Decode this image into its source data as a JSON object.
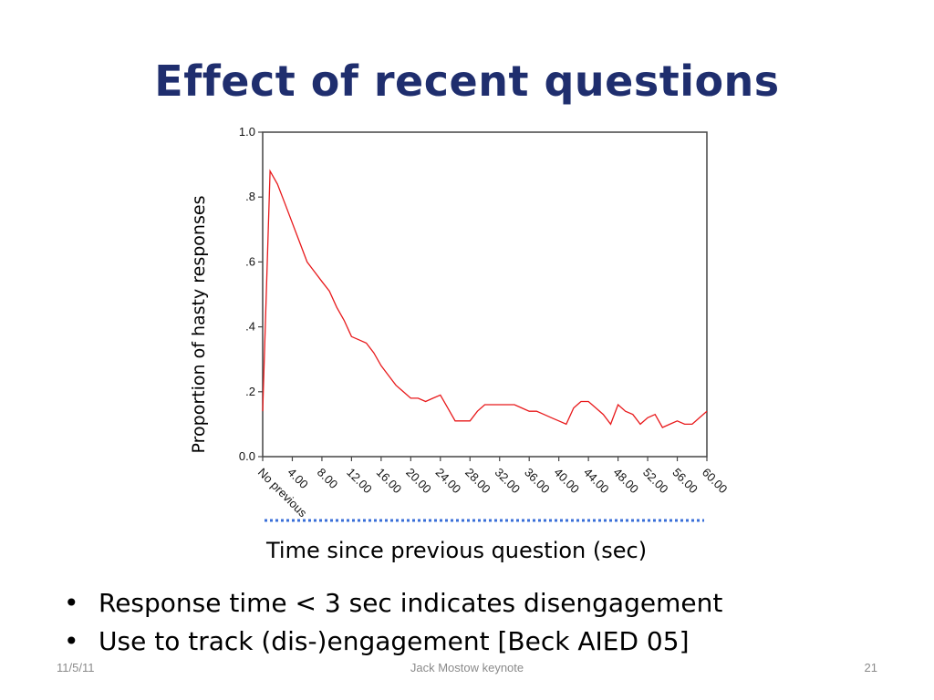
{
  "slide": {
    "title": "Effect of recent questions",
    "bullets": [
      "Response time < 3 sec indicates disengagement",
      "Use to track (dis-)engagement [Beck AIED 05]"
    ],
    "footer": {
      "date": "11/5/11",
      "center": "Jack Mostow keynote",
      "page": "21"
    }
  },
  "chart_data": {
    "type": "line",
    "xlabel": "Time since previous question (sec)",
    "ylabel": "Proportion of hasty responses",
    "ylim": [
      0,
      1
    ],
    "yticks": [
      "0.0",
      ".2",
      ".4",
      ".6",
      ".8",
      "1.0"
    ],
    "xticks": [
      "No previous",
      "4.00",
      "8.00",
      "12.00",
      "16.00",
      "20.00",
      "24.00",
      "28.00",
      "32.00",
      "36.00",
      "40.00",
      "44.00",
      "48.00",
      "52.00",
      "56.00",
      "60.00"
    ],
    "xlim": [
      0,
      60
    ],
    "line_color": "#e8191b",
    "grid": false,
    "series": [
      {
        "x": [
          0,
          1,
          2,
          3,
          4,
          5,
          6,
          7,
          8,
          9,
          10,
          11,
          12,
          13,
          14,
          15,
          16,
          17,
          18,
          19,
          20,
          21,
          22,
          23,
          24,
          25,
          26,
          27,
          28,
          29,
          30,
          31,
          32,
          33,
          34,
          35,
          36,
          37,
          38,
          39,
          40,
          41,
          42,
          43,
          44,
          45,
          46,
          47,
          48,
          49,
          50,
          51,
          52,
          53,
          54,
          55,
          56,
          57,
          58,
          59,
          60
        ],
        "y": [
          0.14,
          0.88,
          0.84,
          0.78,
          0.72,
          0.66,
          0.6,
          0.57,
          0.54,
          0.51,
          0.46,
          0.42,
          0.37,
          0.36,
          0.35,
          0.32,
          0.28,
          0.25,
          0.22,
          0.2,
          0.18,
          0.18,
          0.17,
          0.18,
          0.19,
          0.15,
          0.11,
          0.11,
          0.11,
          0.14,
          0.16,
          0.16,
          0.16,
          0.16,
          0.16,
          0.15,
          0.14,
          0.14,
          0.13,
          0.12,
          0.11,
          0.1,
          0.15,
          0.17,
          0.17,
          0.15,
          0.13,
          0.1,
          0.16,
          0.14,
          0.13,
          0.1,
          0.12,
          0.13,
          0.09,
          0.1,
          0.11,
          0.1,
          0.1,
          0.12,
          0.14
        ]
      }
    ]
  }
}
